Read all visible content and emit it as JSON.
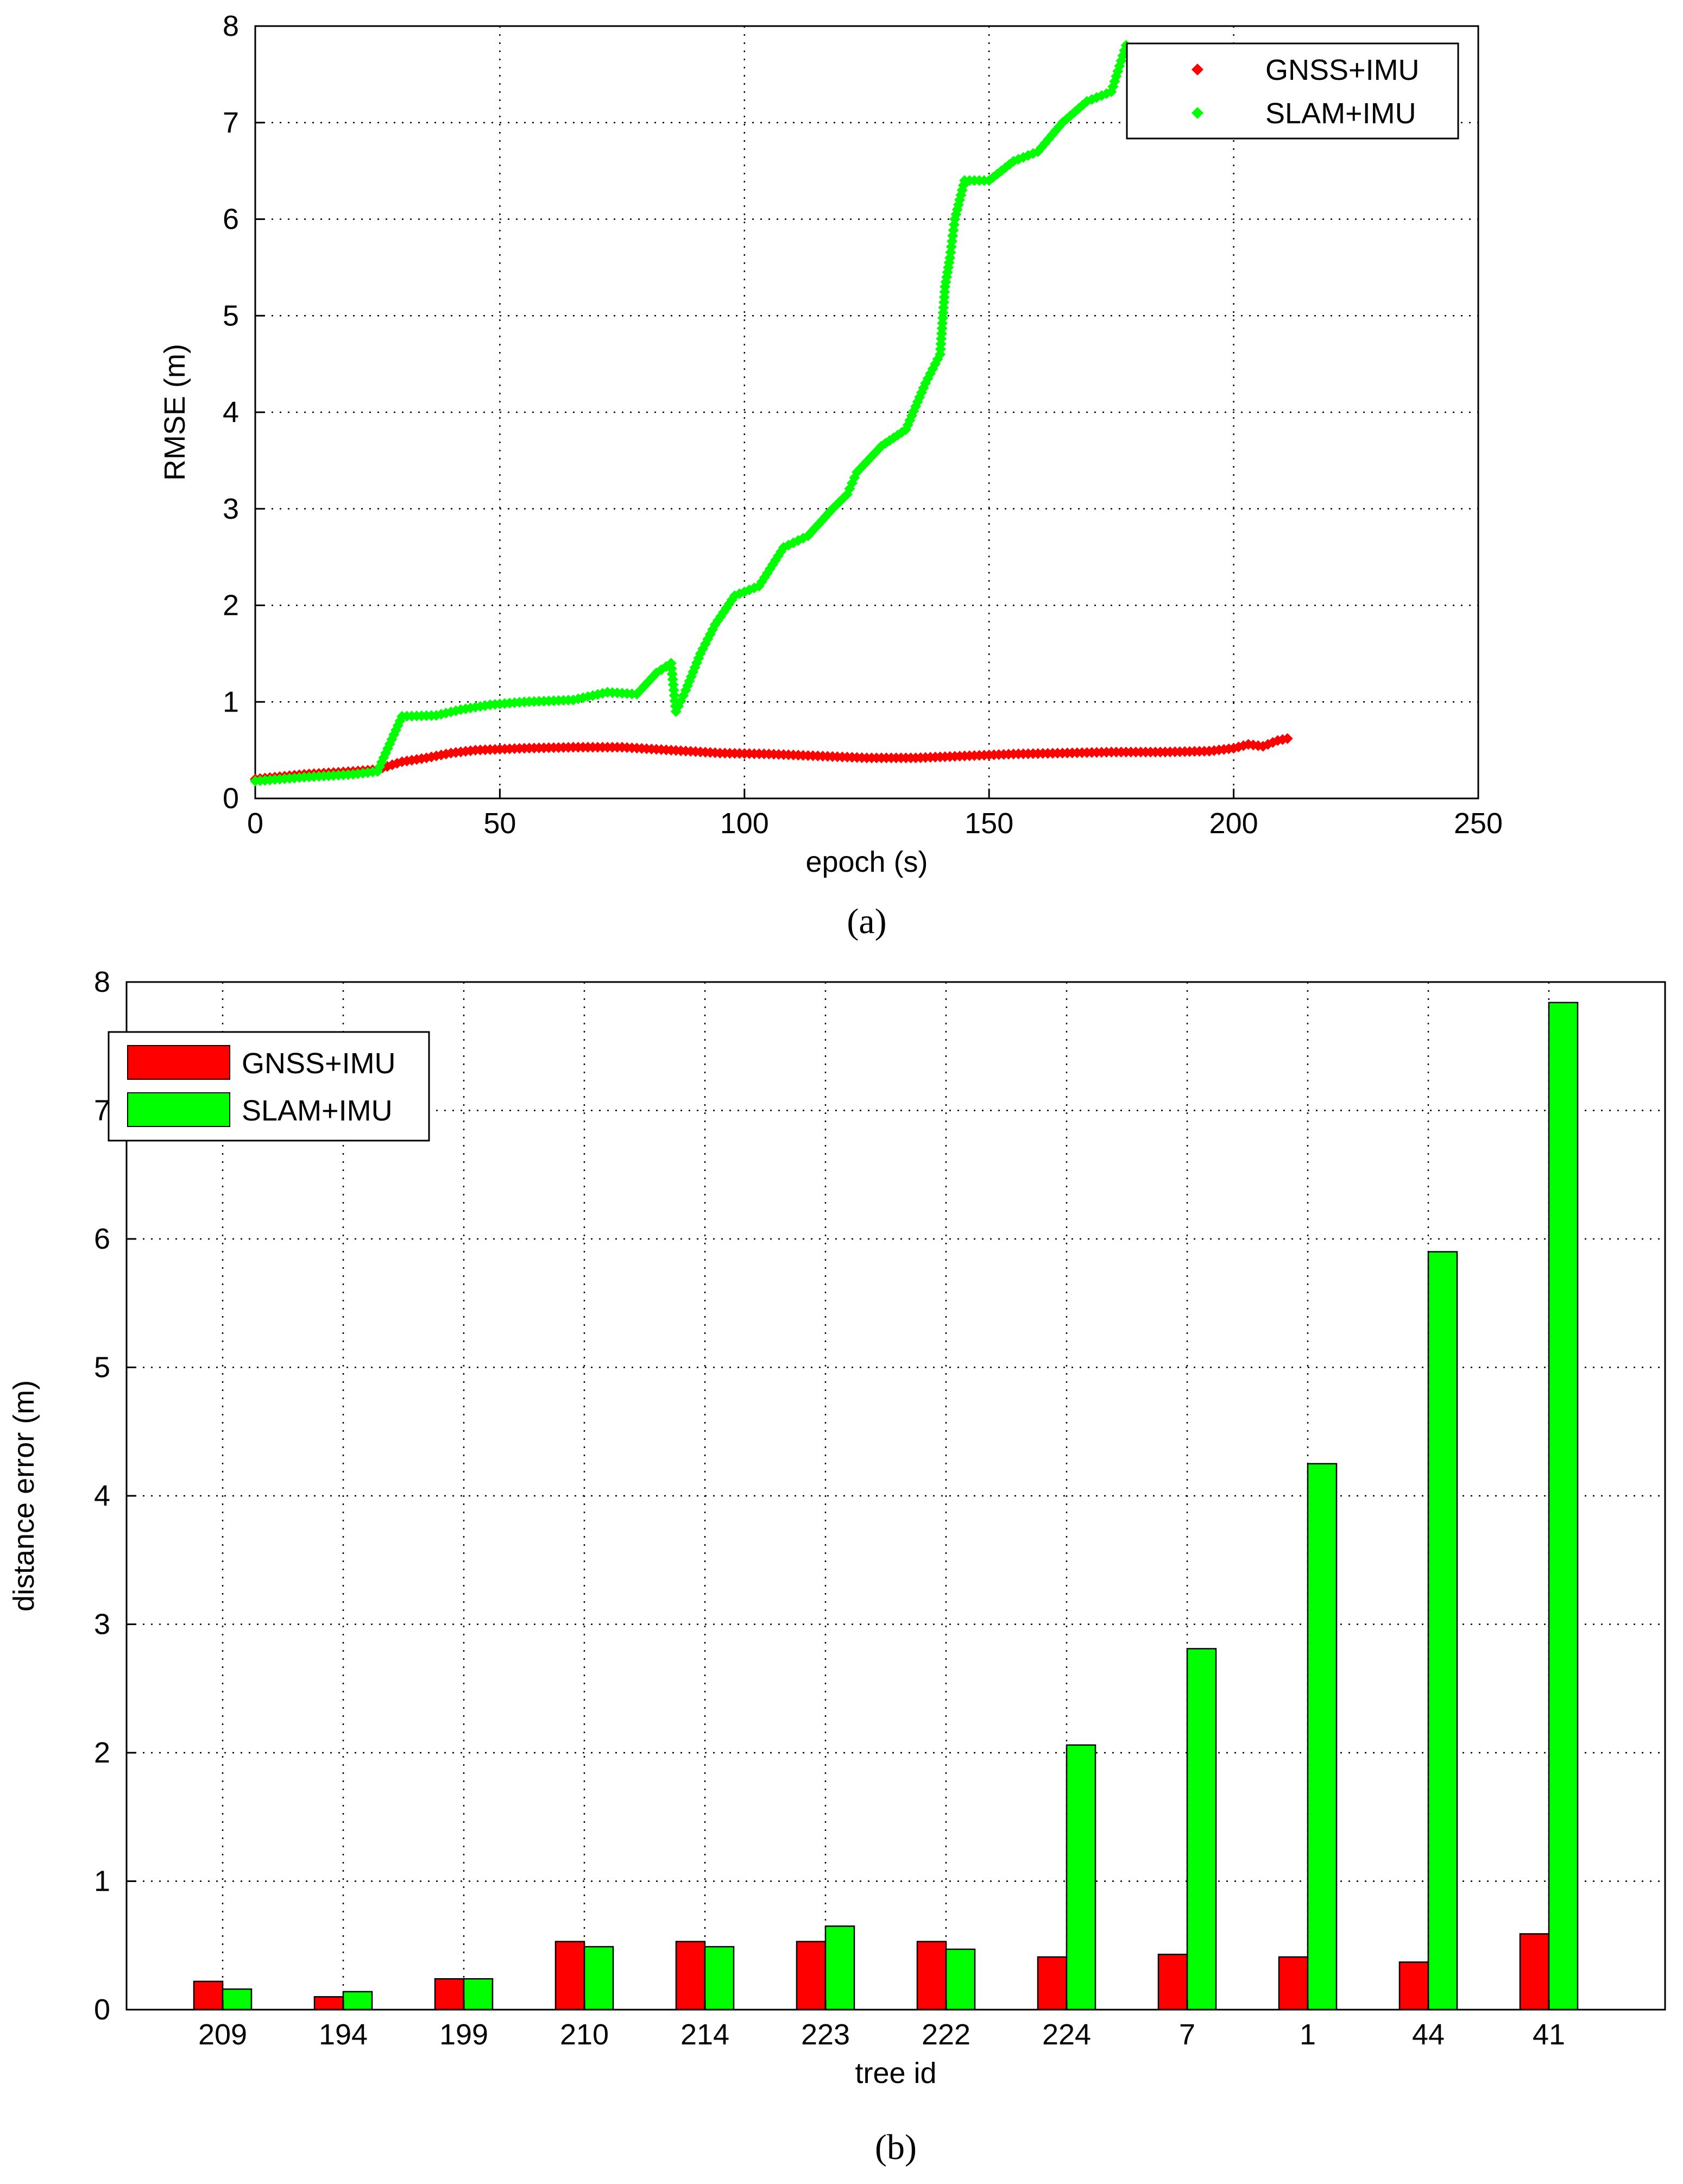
{
  "chart_data": [
    {
      "type": "scatter",
      "caption": "(a)",
      "xlabel": "epoch (s)",
      "ylabel": "RMSE (m)",
      "xlim": [
        0,
        250
      ],
      "ylim": [
        0,
        8
      ],
      "xticks": [
        0,
        50,
        100,
        150,
        200,
        250
      ],
      "yticks": [
        0,
        1,
        2,
        3,
        4,
        5,
        6,
        7,
        8
      ],
      "grid": true,
      "legend_position": "top-right",
      "series": [
        {
          "name": "GNSS+IMU",
          "color": "#ff0000",
          "points": [
            [
              0,
              0.2
            ],
            [
              10,
              0.25
            ],
            [
              20,
              0.28
            ],
            [
              25,
              0.3
            ],
            [
              30,
              0.38
            ],
            [
              35,
              0.42
            ],
            [
              40,
              0.47
            ],
            [
              45,
              0.5
            ],
            [
              55,
              0.52
            ],
            [
              65,
              0.53
            ],
            [
              75,
              0.53
            ],
            [
              85,
              0.5
            ],
            [
              95,
              0.47
            ],
            [
              105,
              0.46
            ],
            [
              115,
              0.44
            ],
            [
              125,
              0.42
            ],
            [
              135,
              0.42
            ],
            [
              145,
              0.44
            ],
            [
              155,
              0.46
            ],
            [
              165,
              0.47
            ],
            [
              175,
              0.48
            ],
            [
              185,
              0.48
            ],
            [
              195,
              0.49
            ],
            [
              200,
              0.52
            ],
            [
              203,
              0.56
            ],
            [
              206,
              0.54
            ],
            [
              209,
              0.6
            ],
            [
              211,
              0.62
            ]
          ]
        },
        {
          "name": "SLAM+IMU",
          "color": "#00ff00",
          "points": [
            [
              0,
              0.18
            ],
            [
              10,
              0.22
            ],
            [
              20,
              0.25
            ],
            [
              25,
              0.28
            ],
            [
              30,
              0.85
            ],
            [
              37,
              0.86
            ],
            [
              42,
              0.92
            ],
            [
              48,
              0.97
            ],
            [
              55,
              1.0
            ],
            [
              65,
              1.02
            ],
            [
              72,
              1.1
            ],
            [
              78,
              1.08
            ],
            [
              82,
              1.3
            ],
            [
              85,
              1.4
            ],
            [
              86,
              0.9
            ],
            [
              88,
              1.12
            ],
            [
              91,
              1.5
            ],
            [
              94,
              1.8
            ],
            [
              98,
              2.1
            ],
            [
              103,
              2.2
            ],
            [
              108,
              2.6
            ],
            [
              113,
              2.72
            ],
            [
              118,
              3.0
            ],
            [
              121,
              3.15
            ],
            [
              123,
              3.38
            ],
            [
              128,
              3.65
            ],
            [
              133,
              3.82
            ],
            [
              137,
              4.3
            ],
            [
              140,
              4.6
            ],
            [
              141,
              5.3
            ],
            [
              142,
              5.6
            ],
            [
              143,
              6.0
            ],
            [
              145,
              6.4
            ],
            [
              150,
              6.4
            ],
            [
              155,
              6.6
            ],
            [
              160,
              6.7
            ],
            [
              165,
              7.0
            ],
            [
              170,
              7.22
            ],
            [
              175,
              7.32
            ],
            [
              178,
              7.8
            ]
          ]
        }
      ]
    },
    {
      "type": "bar",
      "caption": "(b)",
      "xlabel": "tree id",
      "ylabel": "distance error (m)",
      "ylim": [
        0,
        8
      ],
      "yticks": [
        0,
        1,
        2,
        3,
        4,
        5,
        6,
        7,
        8
      ],
      "grid": true,
      "legend_position": "top-left",
      "categories": [
        "209",
        "194",
        "199",
        "210",
        "214",
        "223",
        "222",
        "224",
        "7",
        "1",
        "44",
        "41"
      ],
      "series": [
        {
          "name": "GNSS+IMU",
          "color": "#ff0000",
          "values": [
            0.22,
            0.1,
            0.24,
            0.53,
            0.53,
            0.53,
            0.53,
            0.41,
            0.43,
            0.41,
            0.37,
            0.59
          ]
        },
        {
          "name": "SLAM+IMU",
          "color": "#00ff00",
          "values": [
            0.16,
            0.14,
            0.24,
            0.49,
            0.49,
            0.65,
            0.47,
            2.06,
            2.81,
            4.25,
            5.9,
            7.84
          ]
        }
      ]
    }
  ]
}
